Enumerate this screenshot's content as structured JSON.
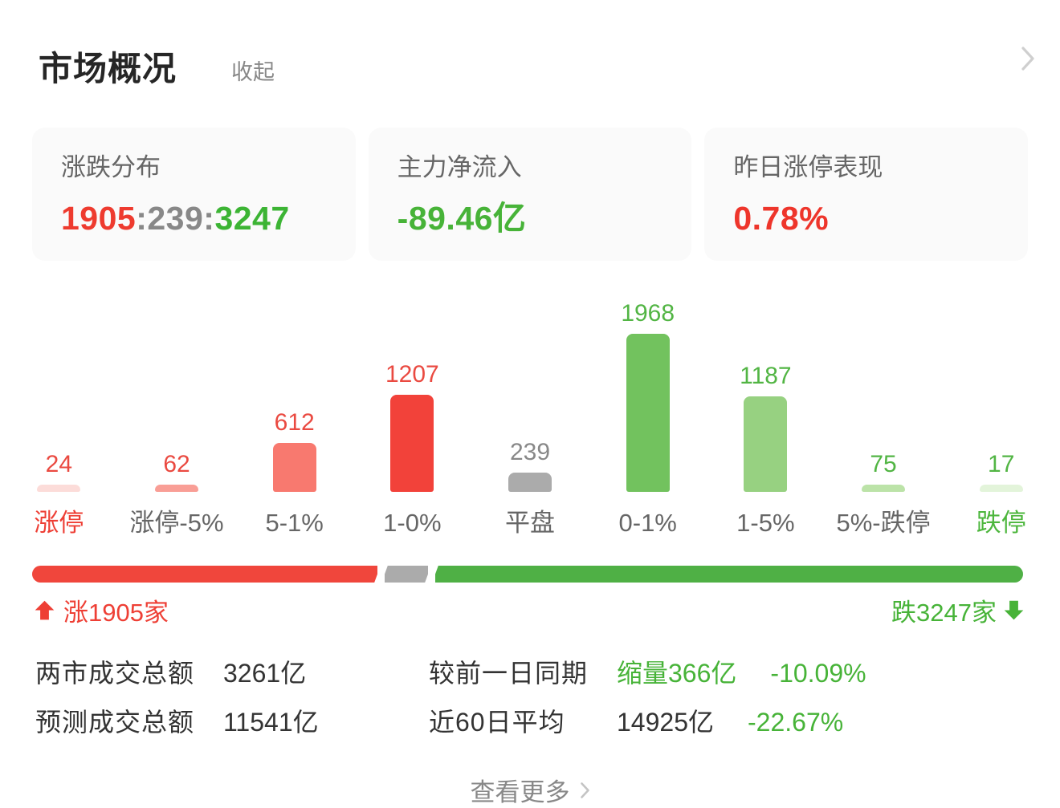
{
  "colors": {
    "text_red": "#ee3f35",
    "bar_red": "#f2423a",
    "text_green": "#47b338",
    "flat_gray": "#ababab",
    "text_dark": "#333333",
    "text_gray": "#888888",
    "label_gray": "#666666",
    "chevron_gray": "#cfcfcf",
    "card_bg": "#fafafa",
    "progress_red": "#f0463c",
    "progress_green": "#4fb045"
  },
  "header": {
    "title": "市场概况",
    "collapse_label": "收起"
  },
  "summary_cards": [
    {
      "label": "涨跌分布",
      "value_parts": [
        {
          "text": "1905",
          "color": "#ee3b2f"
        },
        {
          "text": ":",
          "color": "#888888"
        },
        {
          "text": "239",
          "color": "#888888"
        },
        {
          "text": ":",
          "color": "#888888"
        },
        {
          "text": "3247",
          "color": "#3cb434"
        }
      ]
    },
    {
      "label": "主力净流入",
      "value": "-89.46亿",
      "value_color": "#47b338"
    },
    {
      "label": "昨日涨停表现",
      "value": "0.78%",
      "value_color": "#ee352b"
    }
  ],
  "chart_data": {
    "type": "bar",
    "title": "涨跌分布",
    "categories": [
      "涨停",
      "涨停-5%",
      "5-1%",
      "1-0%",
      "平盘",
      "0-1%",
      "1-5%",
      "5%-跌停",
      "跌停"
    ],
    "values": [
      24,
      62,
      612,
      1207,
      239,
      1968,
      1187,
      75,
      17
    ],
    "bar_colors": [
      "#fcdcd9",
      "#f99e96",
      "#f8796f",
      "#f2423a",
      "#ababab",
      "#72c25e",
      "#97d181",
      "#bce3a8",
      "#e3f4da"
    ],
    "value_label_colors": [
      "#ea4a41",
      "#ea4a41",
      "#ea4a41",
      "#ea4a41",
      "#888888",
      "#52b544",
      "#52b544",
      "#52b544",
      "#52b544"
    ],
    "category_label_colors": [
      "#ee3f35",
      "#666666",
      "#666666",
      "#666666",
      "#666666",
      "#666666",
      "#666666",
      "#666666",
      "#4cb63c"
    ],
    "xlabel": "",
    "ylabel": "",
    "grid": false,
    "legend": false
  },
  "breadth": {
    "up_count": 1905,
    "flat_count": 239,
    "down_count": 3247,
    "up_label": "涨1905家",
    "down_label": "跌3247家"
  },
  "stats": [
    {
      "label": "两市成交总额",
      "value": "3261亿"
    },
    {
      "label": "较前一日同期",
      "value": "缩量366亿",
      "value_color": "#47b338",
      "extra": "-10.09%",
      "extra_color": "#47b338"
    },
    {
      "label": "预测成交总额",
      "value": "11541亿"
    },
    {
      "label": "近60日平均",
      "value": "14925亿",
      "extra": "-22.67%",
      "extra_color": "#47b338"
    }
  ],
  "footer": {
    "more_label": "查看更多"
  }
}
